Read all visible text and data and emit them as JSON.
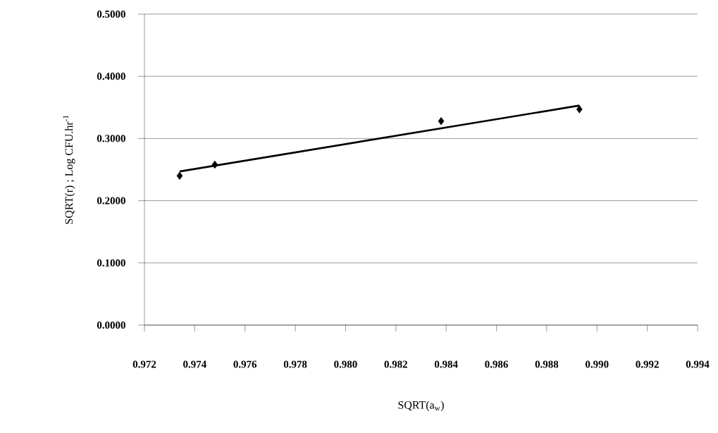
{
  "chart_data": {
    "type": "scatter",
    "xlabel": "SQRT(a$_{w}$)",
    "ylabel": "SQRT(r) ; Log CFU.hr$^{-1}$",
    "xlim": [
      0.972,
      0.994
    ],
    "xticks": [
      {
        "value": 0.972,
        "label": "0.972"
      },
      {
        "value": 0.974,
        "label": "0.974"
      },
      {
        "value": 0.976,
        "label": "0.976"
      },
      {
        "value": 0.978,
        "label": "0.978"
      },
      {
        "value": 0.98,
        "label": "0.980"
      },
      {
        "value": 0.982,
        "label": "0.982"
      },
      {
        "value": 0.984,
        "label": "0.984"
      },
      {
        "value": 0.986,
        "label": "0.986"
      },
      {
        "value": 0.988,
        "label": "0.988"
      },
      {
        "value": 0.99,
        "label": "0.990"
      },
      {
        "value": 0.992,
        "label": "0.992"
      },
      {
        "value": 0.994,
        "label": "0.994"
      }
    ],
    "ylim": [
      0,
      0.5
    ],
    "yticks": [
      {
        "value": 0,
        "label": "0.0000"
      },
      {
        "value": 0.1,
        "label": "0.1000"
      },
      {
        "value": 0.2,
        "label": "0.2000"
      },
      {
        "value": 0.3,
        "label": "0.3000"
      },
      {
        "value": 0.4,
        "label": "0.4000"
      },
      {
        "value": 0.5,
        "label": "0.5000"
      }
    ],
    "grid": "y",
    "marker": "diamond",
    "series": [
      {
        "color": "#000000",
        "x": [
          0.9734,
          0.9748,
          0.9838,
          0.9893
        ],
        "values": [
          0.24,
          0.258,
          0.328,
          0.347
        ]
      },
      {
        "type": "line",
        "color": "#000000",
        "line_style": "solid",
        "marker": "none",
        "x": [
          0.9734,
          0.9893
        ],
        "values": [
          0.247,
          0.353
        ]
      }
    ]
  }
}
